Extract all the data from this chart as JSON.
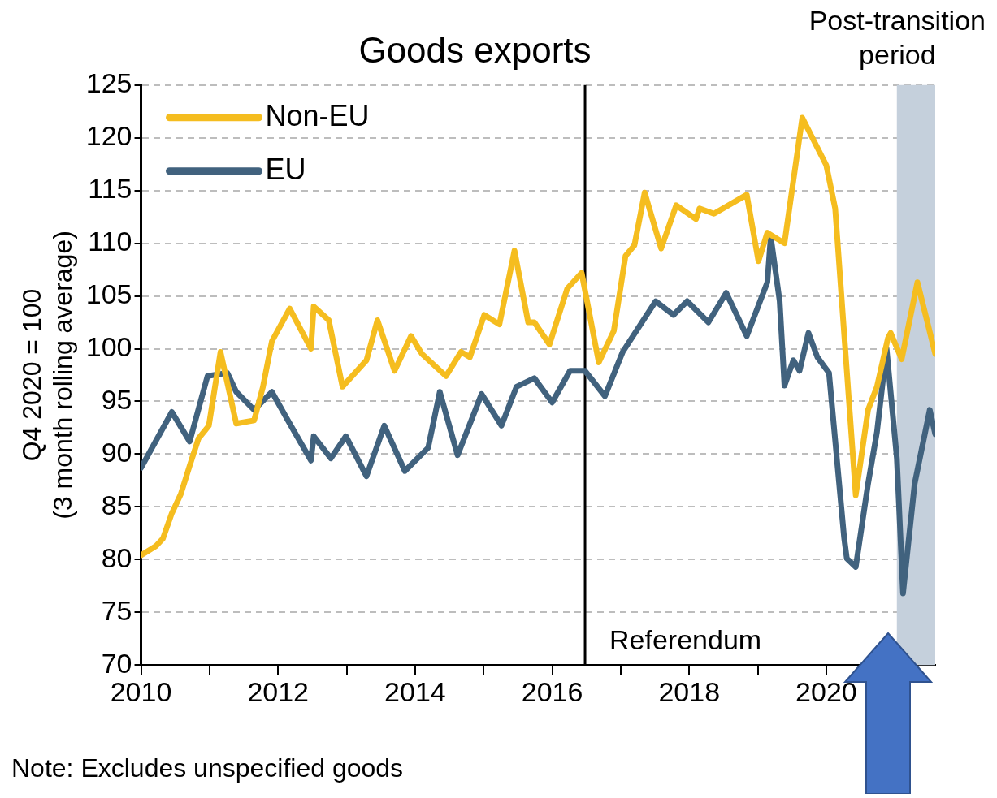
{
  "chart_data": {
    "type": "line",
    "title": "Goods exports",
    "ylabel": "Q4 2020 = 100\n(3 month rolling average)",
    "series": [
      {
        "name": "Non-EU",
        "color": "#f5bd1f",
        "x": [
          2010.0,
          2010.22,
          2010.32,
          2010.45,
          2010.58,
          2010.71,
          2010.84,
          2010.99,
          2011.16,
          2011.39,
          2011.65,
          2011.78,
          2011.91,
          2012.17,
          2012.48,
          2012.52,
          2012.74,
          2012.94,
          2013.29,
          2013.45,
          2013.7,
          2013.94,
          2014.1,
          2014.45,
          2014.67,
          2014.8,
          2015.01,
          2015.23,
          2015.45,
          2015.65,
          2015.74,
          2015.96,
          2016.22,
          2016.43,
          2016.68,
          2016.9,
          2017.07,
          2017.2,
          2017.35,
          2017.59,
          2017.81,
          2018.1,
          2018.15,
          2018.36,
          2018.84,
          2019.01,
          2019.14,
          2019.39,
          2019.65,
          2020.0,
          2020.13,
          2020.43,
          2020.61,
          2020.74,
          2020.9,
          2020.94,
          2021.1,
          2021.33,
          2021.59
        ],
        "values": [
          80.4,
          81.3,
          82,
          84.4,
          86.2,
          88.9,
          91.5,
          92.7,
          99.7,
          92.9,
          93.2,
          96.4,
          100.7,
          103.8,
          100,
          104,
          102.7,
          96.4,
          98.9,
          102.7,
          97.9,
          101.2,
          99.5,
          97.4,
          99.7,
          99.2,
          103.2,
          102.3,
          109.3,
          102.5,
          102.5,
          100.4,
          105.7,
          107.2,
          98.7,
          101.7,
          108.8,
          109.8,
          114.8,
          109.5,
          113.6,
          112.3,
          113.3,
          112.8,
          114.6,
          108.3,
          111,
          110,
          121.9,
          117.4,
          113.3,
          86.1,
          94.2,
          96.4,
          101,
          101.5,
          99,
          106.3,
          99.5
        ]
      },
      {
        "name": "EU",
        "color": "#41627e",
        "x": [
          2010.0,
          2010.45,
          2010.71,
          2010.97,
          2011.26,
          2011.39,
          2011.65,
          2011.91,
          2012.17,
          2012.48,
          2012.52,
          2012.77,
          2012.99,
          2013.29,
          2013.55,
          2013.85,
          2014.19,
          2014.36,
          2014.62,
          2014.97,
          2015.26,
          2015.48,
          2015.74,
          2016.0,
          2016.26,
          2016.48,
          2016.77,
          2017.03,
          2017.51,
          2017.77,
          2017.97,
          2018.28,
          2018.54,
          2018.84,
          2019.14,
          2019.19,
          2019.32,
          2019.39,
          2019.52,
          2019.61,
          2019.74,
          2019.87,
          2020.04,
          2020.26,
          2020.3,
          2020.43,
          2020.61,
          2020.74,
          2020.88,
          2021.03,
          2021.12,
          2021.29,
          2021.51,
          2021.59
        ],
        "values": [
          88.7,
          94,
          91.2,
          97.4,
          97.7,
          95.9,
          94.2,
          95.9,
          92.9,
          89.4,
          91.7,
          89.6,
          91.7,
          87.9,
          92.7,
          88.4,
          90.6,
          95.9,
          89.9,
          95.7,
          92.7,
          96.4,
          97.2,
          94.9,
          97.9,
          97.9,
          95.5,
          99.7,
          104.5,
          103.2,
          104.5,
          102.5,
          105.3,
          101.2,
          106.3,
          110.6,
          104.5,
          96.5,
          98.9,
          97.9,
          101.5,
          99.2,
          97.7,
          82.1,
          80.1,
          79.3,
          87.2,
          92.1,
          100,
          89.6,
          76.8,
          87.2,
          94.2,
          91.9
        ]
      }
    ],
    "xlim": [
      2010,
      2021.59
    ],
    "xticks": [
      2010,
      {
        "value": 2011,
        "label": null
      },
      2012,
      {
        "value": 2013,
        "label": null
      },
      2014,
      {
        "value": 2015,
        "label": null
      },
      2016,
      {
        "value": 2017,
        "label": null
      },
      2018,
      {
        "value": 2019,
        "label": null
      },
      2020,
      {
        "value": 2021,
        "label": null
      }
    ],
    "ylim": [
      70,
      125
    ],
    "yticks": [
      70,
      75,
      80,
      85,
      90,
      95,
      100,
      105,
      110,
      115,
      120,
      125
    ],
    "grid": "y",
    "legend": "top left",
    "marker": "none",
    "line_style": "solid",
    "ref_lines": [
      {
        "axis": "x",
        "value": 2016.48,
        "label": "Referendum",
        "color": "#000000"
      }
    ],
    "bands": [
      {
        "axis": "x",
        "from": 2021.03,
        "to": 2021.59,
        "label": "Post-transition period",
        "color": "#c5d0dc"
      }
    ],
    "annotations": [
      "Note: Excludes unspecified goods"
    ]
  }
}
